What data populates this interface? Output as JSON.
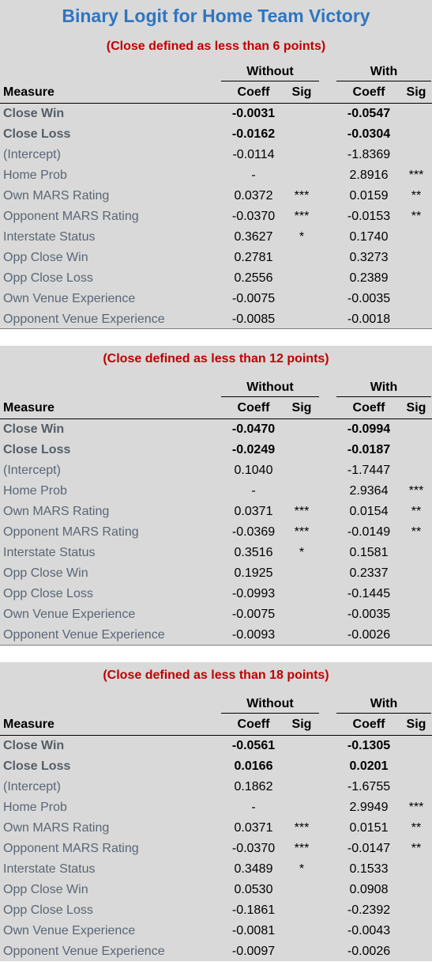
{
  "title": "Binary Logit for Home Team Victory",
  "headers": {
    "without": "Without",
    "with": "With",
    "measure": "Measure",
    "coeff": "Coeff",
    "sig": "Sig"
  },
  "panels": [
    {
      "subtitle": "(Close defined as less than 6 points)",
      "rows": [
        {
          "measure": "Close Win",
          "wo_coeff": "-0.0031",
          "wo_sig": "",
          "w_coeff": "-0.0547",
          "w_sig": ""
        },
        {
          "measure": "Close Loss",
          "wo_coeff": "-0.0162",
          "wo_sig": "",
          "w_coeff": "-0.0304",
          "w_sig": ""
        },
        {
          "measure": "(Intercept)",
          "wo_coeff": "-0.0114",
          "wo_sig": "",
          "w_coeff": "-1.8369",
          "w_sig": ""
        },
        {
          "measure": "Home Prob",
          "wo_coeff": "-",
          "wo_sig": "",
          "w_coeff": "2.8916",
          "w_sig": "***"
        },
        {
          "measure": "Own MARS Rating",
          "wo_coeff": "0.0372",
          "wo_sig": "***",
          "w_coeff": "0.0159",
          "w_sig": "**"
        },
        {
          "measure": "Opponent MARS Rating",
          "wo_coeff": "-0.0370",
          "wo_sig": "***",
          "w_coeff": "-0.0153",
          "w_sig": "**"
        },
        {
          "measure": "Interstate Status",
          "wo_coeff": "0.3627",
          "wo_sig": "*",
          "w_coeff": "0.1740",
          "w_sig": ""
        },
        {
          "measure": "Opp Close Win",
          "wo_coeff": "0.2781",
          "wo_sig": "",
          "w_coeff": "0.3273",
          "w_sig": ""
        },
        {
          "measure": "Opp Close Loss",
          "wo_coeff": "0.2556",
          "wo_sig": "",
          "w_coeff": "0.2389",
          "w_sig": ""
        },
        {
          "measure": "Own Venue Experience",
          "wo_coeff": "-0.0075",
          "wo_sig": "",
          "w_coeff": "-0.0035",
          "w_sig": ""
        },
        {
          "measure": "Opponent Venue Experience",
          "wo_coeff": "-0.0085",
          "wo_sig": "",
          "w_coeff": "-0.0018",
          "w_sig": ""
        }
      ]
    },
    {
      "subtitle": "(Close defined as less than 12 points)",
      "rows": [
        {
          "measure": "Close Win",
          "wo_coeff": "-0.0470",
          "wo_sig": "",
          "w_coeff": "-0.0994",
          "w_sig": ""
        },
        {
          "measure": "Close Loss",
          "wo_coeff": "-0.0249",
          "wo_sig": "",
          "w_coeff": "-0.0187",
          "w_sig": ""
        },
        {
          "measure": "(Intercept)",
          "wo_coeff": "0.1040",
          "wo_sig": "",
          "w_coeff": "-1.7447",
          "w_sig": ""
        },
        {
          "measure": "Home Prob",
          "wo_coeff": "-",
          "wo_sig": "",
          "w_coeff": "2.9364",
          "w_sig": "***"
        },
        {
          "measure": "Own MARS Rating",
          "wo_coeff": "0.0371",
          "wo_sig": "***",
          "w_coeff": "0.0154",
          "w_sig": "**"
        },
        {
          "measure": "Opponent MARS Rating",
          "wo_coeff": "-0.0369",
          "wo_sig": "***",
          "w_coeff": "-0.0149",
          "w_sig": "**"
        },
        {
          "measure": "Interstate Status",
          "wo_coeff": "0.3516",
          "wo_sig": "*",
          "w_coeff": "0.1581",
          "w_sig": ""
        },
        {
          "measure": "Opp Close Win",
          "wo_coeff": "0.1925",
          "wo_sig": "",
          "w_coeff": "0.2337",
          "w_sig": ""
        },
        {
          "measure": "Opp Close Loss",
          "wo_coeff": "-0.0993",
          "wo_sig": "",
          "w_coeff": "-0.1445",
          "w_sig": ""
        },
        {
          "measure": "Own Venue Experience",
          "wo_coeff": "-0.0075",
          "wo_sig": "",
          "w_coeff": "-0.0035",
          "w_sig": ""
        },
        {
          "measure": "Opponent Venue Experience",
          "wo_coeff": "-0.0093",
          "wo_sig": "",
          "w_coeff": "-0.0026",
          "w_sig": ""
        }
      ]
    },
    {
      "subtitle": "(Close defined as less than 18 points)",
      "rows": [
        {
          "measure": "Close Win",
          "wo_coeff": "-0.0561",
          "wo_sig": "",
          "w_coeff": "-0.1305",
          "w_sig": ""
        },
        {
          "measure": "Close Loss",
          "wo_coeff": "0.0166",
          "wo_sig": "",
          "w_coeff": "0.0201",
          "w_sig": ""
        },
        {
          "measure": "(Intercept)",
          "wo_coeff": "0.1862",
          "wo_sig": "",
          "w_coeff": "-1.6755",
          "w_sig": ""
        },
        {
          "measure": "Home Prob",
          "wo_coeff": "-",
          "wo_sig": "",
          "w_coeff": "2.9949",
          "w_sig": "***"
        },
        {
          "measure": "Own MARS Rating",
          "wo_coeff": "0.0371",
          "wo_sig": "***",
          "w_coeff": "0.0151",
          "w_sig": "**"
        },
        {
          "measure": "Opponent MARS Rating",
          "wo_coeff": "-0.0370",
          "wo_sig": "***",
          "w_coeff": "-0.0147",
          "w_sig": "**"
        },
        {
          "measure": "Interstate Status",
          "wo_coeff": "0.3489",
          "wo_sig": "*",
          "w_coeff": "0.1533",
          "w_sig": ""
        },
        {
          "measure": "Opp Close Win",
          "wo_coeff": "0.0530",
          "wo_sig": "",
          "w_coeff": "0.0908",
          "w_sig": ""
        },
        {
          "measure": "Opp Close Loss",
          "wo_coeff": "-0.1861",
          "wo_sig": "",
          "w_coeff": "-0.2392",
          "w_sig": ""
        },
        {
          "measure": "Own Venue Experience",
          "wo_coeff": "-0.0081",
          "wo_sig": "",
          "w_coeff": "-0.0043",
          "w_sig": ""
        },
        {
          "measure": "Opponent Venue Experience",
          "wo_coeff": "-0.0097",
          "wo_sig": "",
          "w_coeff": "-0.0026",
          "w_sig": ""
        }
      ]
    }
  ]
}
